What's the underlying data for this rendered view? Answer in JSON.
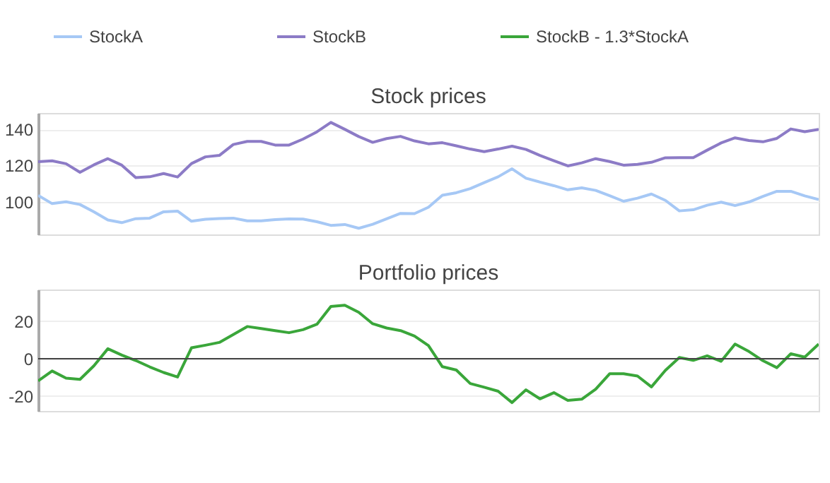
{
  "chart_data": [
    {
      "type": "line",
      "title": "Stock prices",
      "categories": [
        null,
        null,
        null,
        null,
        null,
        null,
        null,
        null,
        null,
        null,
        null,
        null,
        null,
        null,
        null,
        null,
        null,
        null,
        null,
        null,
        null,
        null,
        null,
        null,
        null,
        null,
        null,
        null,
        null,
        null,
        null,
        null,
        null,
        null,
        null,
        null,
        null,
        null,
        null,
        null,
        null,
        null,
        null,
        null,
        null,
        null,
        null,
        null,
        null,
        null,
        null,
        null,
        null,
        null,
        null,
        null,
        null
      ],
      "ylim": [
        82,
        149
      ],
      "yticks": [
        100,
        120,
        140
      ],
      "grid": "y",
      "legend": "top",
      "tick_labels": "y",
      "line_style": "solid",
      "marker": "none",
      "series": [
        {
          "name": "StockA",
          "color": "#a6c8f5",
          "values": [
            103.5,
            99,
            100,
            98.5,
            94.5,
            90,
            88.5,
            90.7,
            91,
            94.5,
            94.9,
            89.3,
            90.4,
            90.8,
            91,
            89.5,
            89.5,
            90.2,
            90.6,
            90.5,
            89,
            87,
            87.5,
            85.4,
            87.6,
            90.6,
            93.6,
            93.5,
            97,
            103.6,
            105,
            107.3,
            110.6,
            113.8,
            118.2,
            113,
            110.9,
            108.9,
            106.6,
            107.7,
            106.3,
            103.4,
            100.3,
            102,
            104.3,
            100.8,
            95,
            95.6,
            98.1,
            99.8,
            97.9,
            99.9,
            103,
            105.8,
            105.8,
            103.3,
            101.3
          ]
        },
        {
          "name": "StockB",
          "color": "#8c7bc6",
          "values": [
            122.1,
            122.6,
            121,
            116.3,
            120.4,
            123.8,
            120.2,
            113.4,
            113.8,
            115.6,
            113.7,
            121.1,
            124.8,
            125.6,
            131.6,
            133.3,
            133.3,
            131.3,
            131.3,
            134.6,
            138.6,
            143.8,
            140,
            136,
            132.8,
            134.9,
            136.1,
            133.6,
            132,
            132.6,
            130.9,
            129.1,
            127.7,
            129.1,
            130.7,
            128.9,
            125.6,
            122.7,
            119.8,
            121.5,
            123.8,
            122.2,
            120.2,
            120.7,
            121.8,
            124.3,
            124.4,
            124.4,
            128.5,
            132.5,
            135.3,
            133.8,
            133.1,
            135,
            140.2,
            138.7,
            140
          ]
        }
      ]
    },
    {
      "type": "line",
      "title": "Portfolio prices",
      "categories": [
        null,
        null,
        null,
        null,
        null,
        null,
        null,
        null,
        null,
        null,
        null,
        null,
        null,
        null,
        null,
        null,
        null,
        null,
        null,
        null,
        null,
        null,
        null,
        null,
        null,
        null,
        null,
        null,
        null,
        null,
        null,
        null,
        null,
        null,
        null,
        null,
        null,
        null,
        null,
        null,
        null,
        null,
        null,
        null,
        null,
        null,
        null,
        null,
        null,
        null,
        null,
        null,
        null,
        null,
        null,
        null,
        null
      ],
      "ylim": [
        -28,
        37
      ],
      "yticks": [
        -20,
        0,
        20
      ],
      "grid": "y",
      "legend": "top",
      "tick_labels": "y",
      "line_style": "solid",
      "marker": "none",
      "ref_lines": [
        {
          "axis": "y",
          "value": 0,
          "label": null,
          "color": "#444444"
        }
      ],
      "series": [
        {
          "name": "StockB - 1.3*StockA",
          "color": "#3aa63a",
          "values": [
            -11.9,
            -6.6,
            -10.4,
            -11.1,
            -3.8,
            5.3,
            1.9,
            -1,
            -4.4,
            -7.4,
            -9.8,
            5.8,
            7.2,
            8.7,
            12.9,
            17.2,
            16.1,
            15,
            13.9,
            15.5,
            18.4,
            27.9,
            28.6,
            24.8,
            18.7,
            16.4,
            15,
            12.1,
            7,
            -4.3,
            -6.1,
            -13.3,
            -15.3,
            -17.4,
            -23.5,
            -16.7,
            -21.5,
            -18.2,
            -22.3,
            -21.7,
            -16.3,
            -8.1,
            -8.1,
            -9.3,
            -15.1,
            -6.3,
            0.6,
            -0.9,
            1.5,
            -1.4,
            7.8,
            3.8,
            -1.1,
            -4.8,
            2.6,
            0.8,
            7.8
          ]
        }
      ]
    }
  ]
}
